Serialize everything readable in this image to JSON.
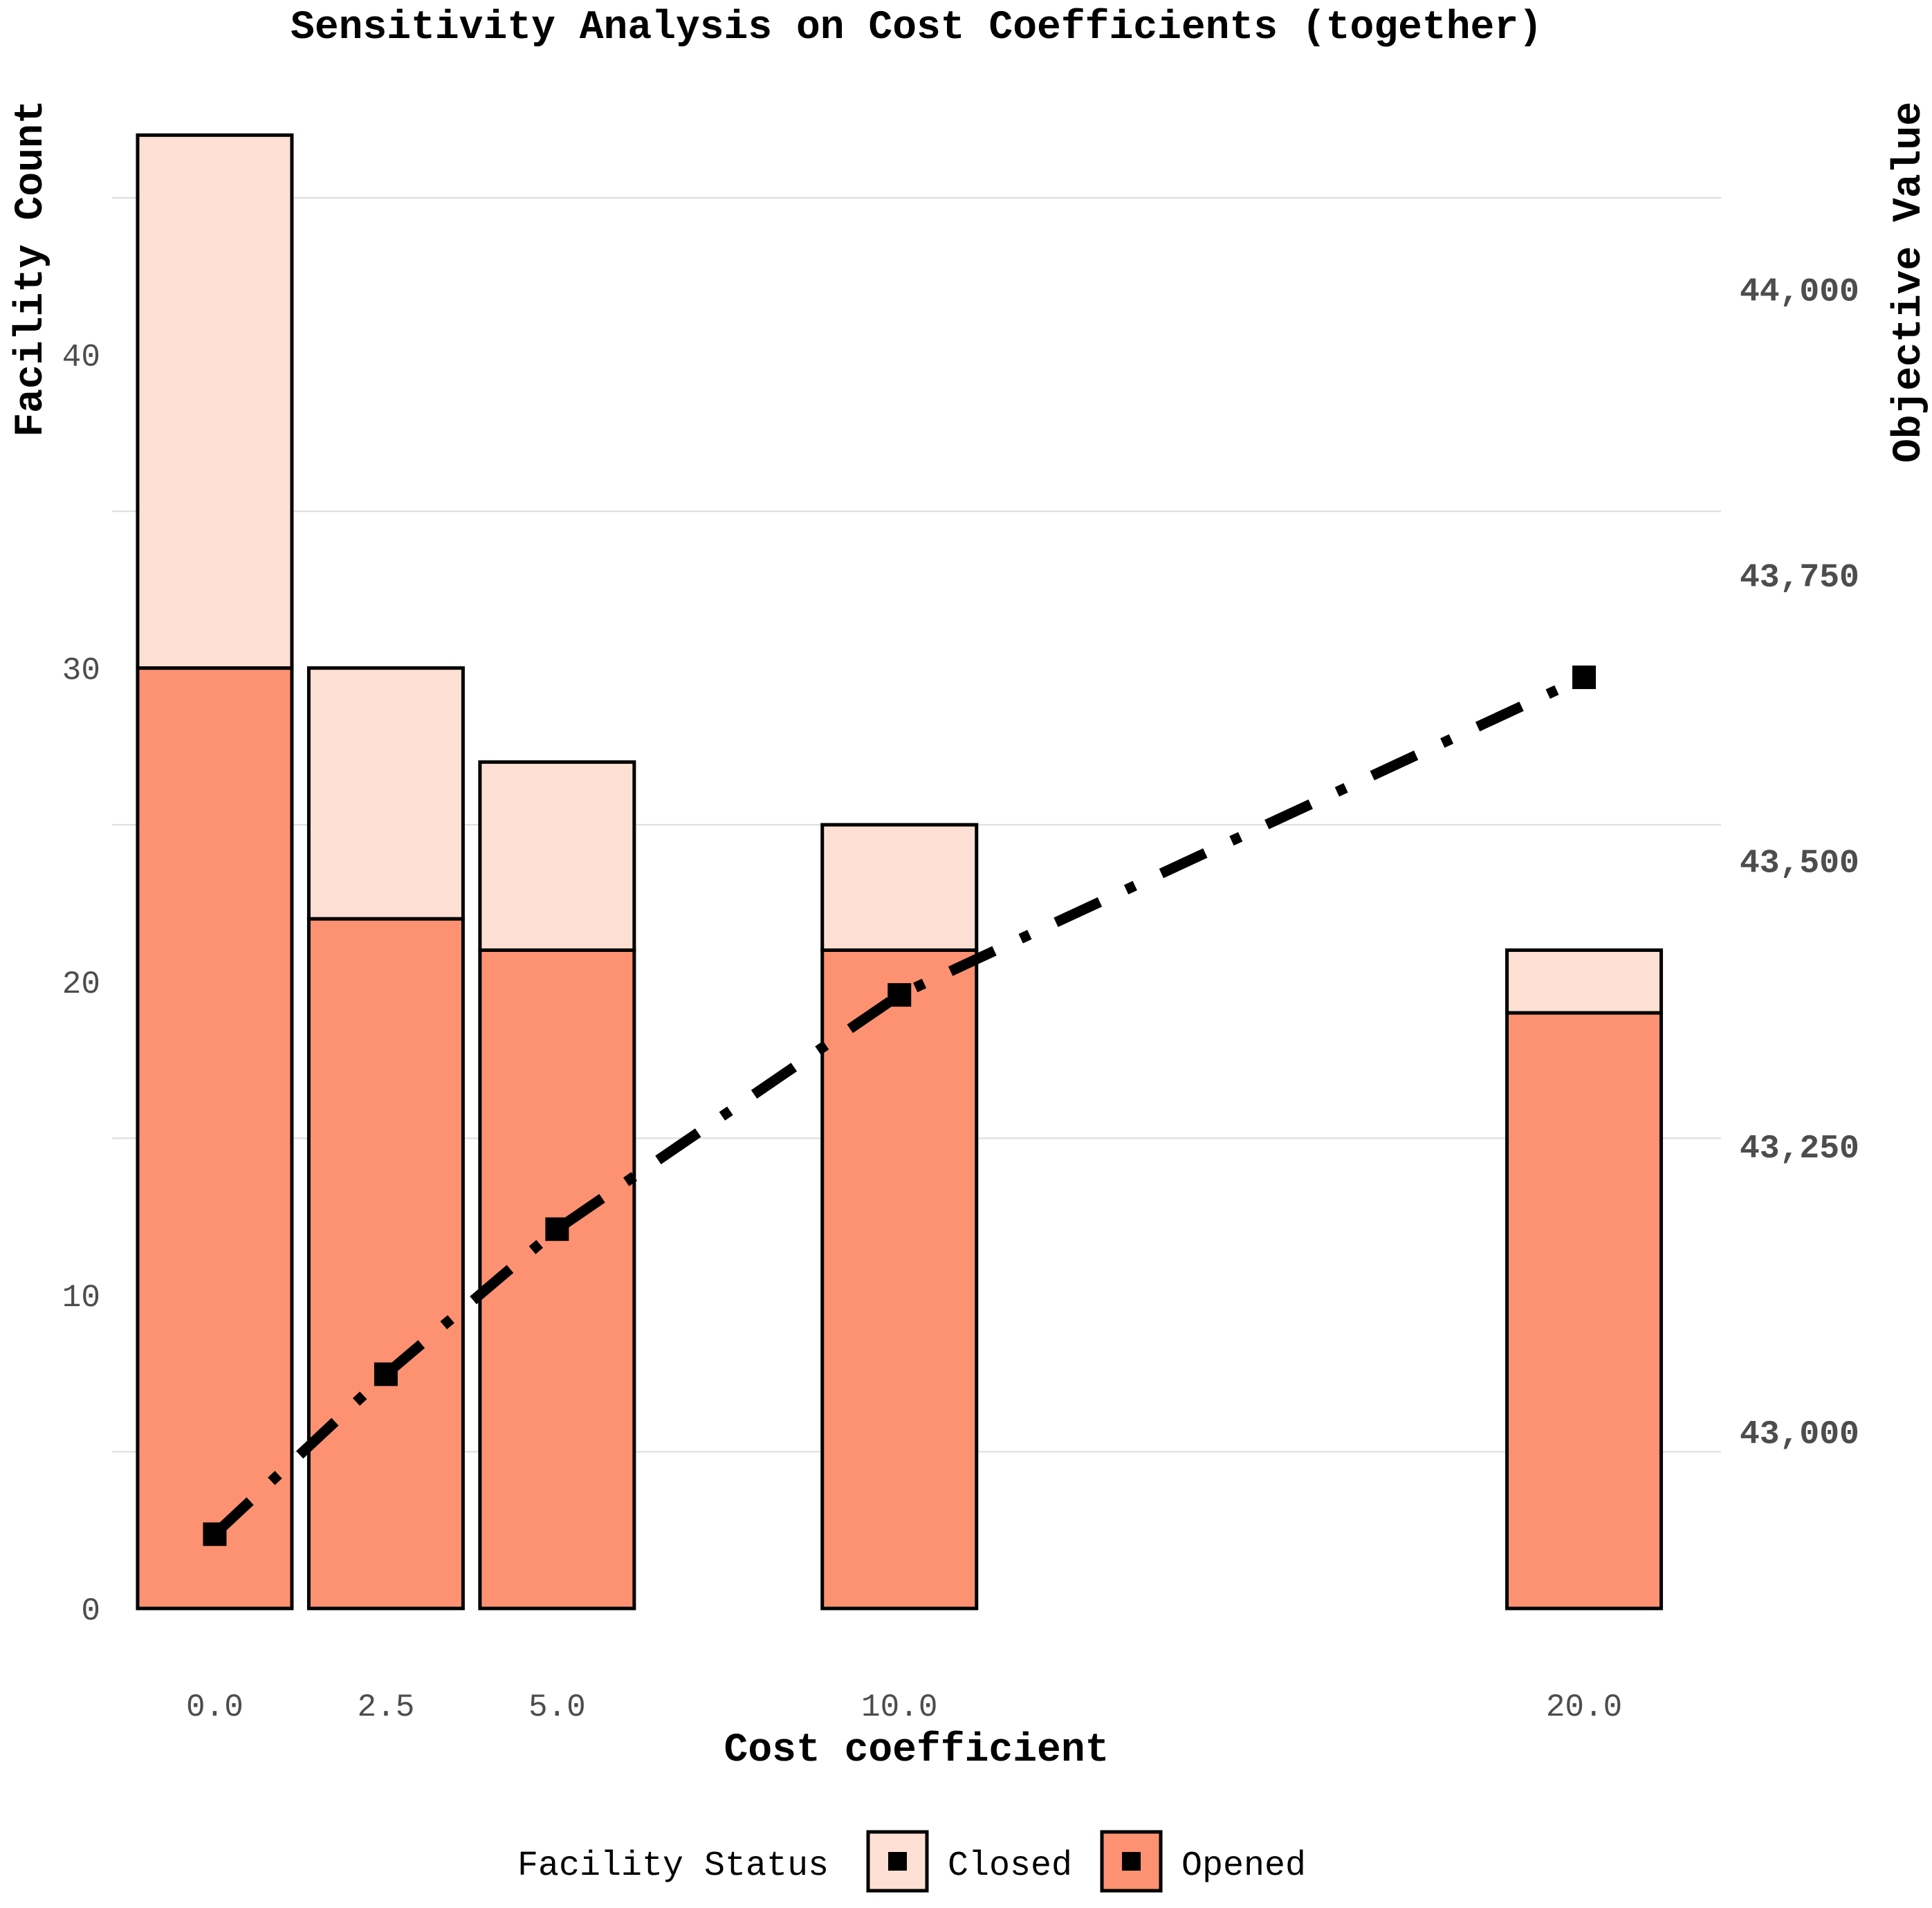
{
  "chart_data": {
    "type": "bar",
    "title": "Sensitivity Analysis on Cost Coefficients (together)",
    "xlabel": "Cost coefficient",
    "ylabel": "Facility Count",
    "y2label": "Objective Value",
    "x": [
      0.0,
      2.5,
      5.0,
      10.0,
      20.0
    ],
    "categories": [
      "0.0",
      "2.5",
      "5.0",
      "10.0",
      "20.0"
    ],
    "stacked": true,
    "series": [
      {
        "name": "Opened",
        "values": [
          30,
          22,
          21,
          21,
          19
        ],
        "color": "#fc9272"
      },
      {
        "name": "Closed",
        "values": [
          17,
          8,
          6,
          4,
          2
        ],
        "color": "#fde0d3"
      }
    ],
    "line": {
      "name": "Objective Value",
      "axis": "right",
      "values": [
        42910,
        43050,
        43177,
        43382,
        43660
      ],
      "style": "dashdot",
      "marker": "square",
      "color": "#000000"
    },
    "xlim": [
      -1.5,
      22.0
    ],
    "ylim": [
      0,
      48
    ],
    "y2lim": [
      42845,
      44162
    ],
    "yticks": [
      0,
      10,
      20,
      30,
      40
    ],
    "y2ticks": [
      43000,
      43250,
      43500,
      43750,
      44000
    ],
    "y2ticklabels": [
      "43,000",
      "43,250",
      "43,500",
      "43,750",
      "44,000"
    ],
    "grid": true,
    "legend": {
      "title": "Facility Status",
      "placement": "bottom",
      "entries": [
        "Closed",
        "Opened"
      ]
    }
  }
}
